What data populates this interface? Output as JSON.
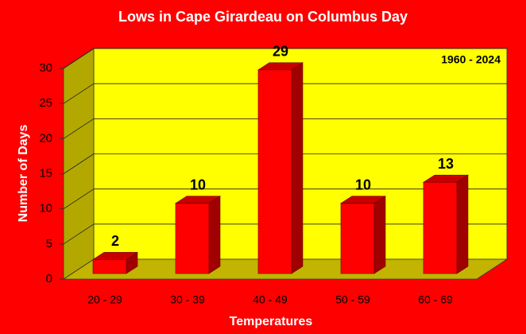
{
  "chart_data": {
    "type": "bar",
    "title": "Lows in Cape Girardeau on Columbus Day",
    "annotation": "1960 - 2024",
    "x_label": "Temperatures",
    "y_label": "Number of Days",
    "categories": [
      "20 - 29",
      "30 - 39",
      "40 - 49",
      "50 - 59",
      "60 - 69"
    ],
    "values": [
      2,
      10,
      29,
      10,
      13
    ],
    "color": "#ff0000",
    "ylim": [
      0,
      30
    ],
    "yticks": [
      0,
      5,
      10,
      15,
      20,
      25,
      30
    ],
    "grid": true
  }
}
